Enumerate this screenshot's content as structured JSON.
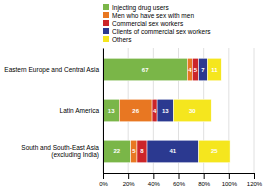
{
  "chart_data": {
    "type": "bar",
    "orientation": "horizontal",
    "stacked": true,
    "data_labels": true,
    "grid": true,
    "legend": "top",
    "categories": [
      "Eastern Europe and Central Asia",
      "Latin America",
      "South and South-East Asia\n(excluding India)"
    ],
    "series": [
      {
        "name": "Injecting drug users",
        "color": "#7ab648",
        "values": [
          67,
          13,
          22
        ]
      },
      {
        "name": "Men who have sex with men",
        "color": "#e87722",
        "values": [
          4,
          26,
          5
        ]
      },
      {
        "name": "Commercial sex workers",
        "color": "#cc2529",
        "values": [
          5,
          4,
          8
        ]
      },
      {
        "name": "Clients of commercial sex workers",
        "color": "#2b3990",
        "values": [
          7,
          13,
          41
        ]
      },
      {
        "name": "Others",
        "color": "#f5e61e",
        "values": [
          11,
          30,
          25
        ]
      }
    ],
    "xlim": [
      0,
      120
    ],
    "xticks": [
      {
        "value": 0,
        "label": "0%"
      },
      {
        "value": 20,
        "label": "20%"
      },
      {
        "value": 40,
        "label": "40%"
      },
      {
        "value": 60,
        "label": "60%"
      },
      {
        "value": 80,
        "label": "80%"
      },
      {
        "value": 100,
        "label": "100%"
      },
      {
        "value": 120,
        "label": "120%"
      }
    ]
  }
}
